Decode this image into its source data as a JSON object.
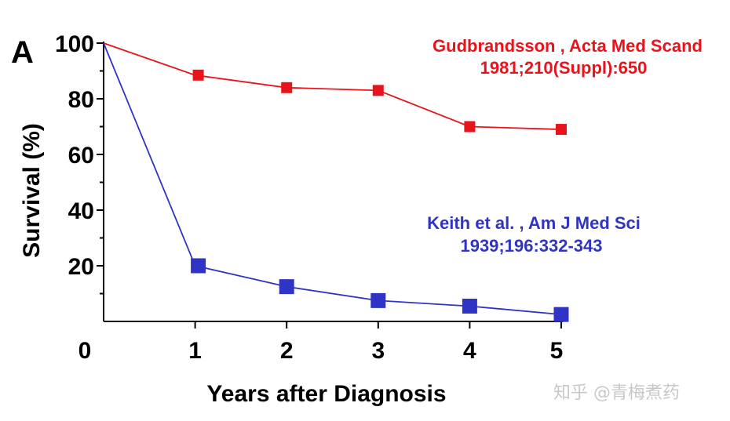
{
  "panel_label": "A",
  "watermark": "知乎 @青梅煮药",
  "chart_data": {
    "type": "line",
    "title": "",
    "xlabel": "Years after Diagnosis",
    "ylabel": "Survival (%)",
    "xlim": [
      0,
      5
    ],
    "ylim": [
      0,
      100
    ],
    "x_ticks": [
      0,
      1,
      2,
      3,
      4,
      5
    ],
    "y_ticks": [
      20,
      40,
      60,
      80,
      100
    ],
    "grid": false,
    "series": [
      {
        "color": "#e8141c",
        "marker": "square",
        "x": [
          0,
          1,
          2,
          3,
          4,
          5
        ],
        "values": [
          100,
          88.5,
          84,
          83,
          70,
          69
        ],
        "annotation": [
          "Gudbrandsson , Acta Med Scand",
          "1981;210(Suppl):650"
        ]
      },
      {
        "color": "#2f34c4",
        "marker": "square",
        "x": [
          0,
          1,
          2,
          3,
          4,
          5
        ],
        "values": [
          100,
          20,
          12.5,
          7.5,
          5.5,
          2.5
        ],
        "annotation": [
          "Keith et al. , Am J Med Sci",
          "1939;196:332-343"
        ]
      }
    ]
  }
}
